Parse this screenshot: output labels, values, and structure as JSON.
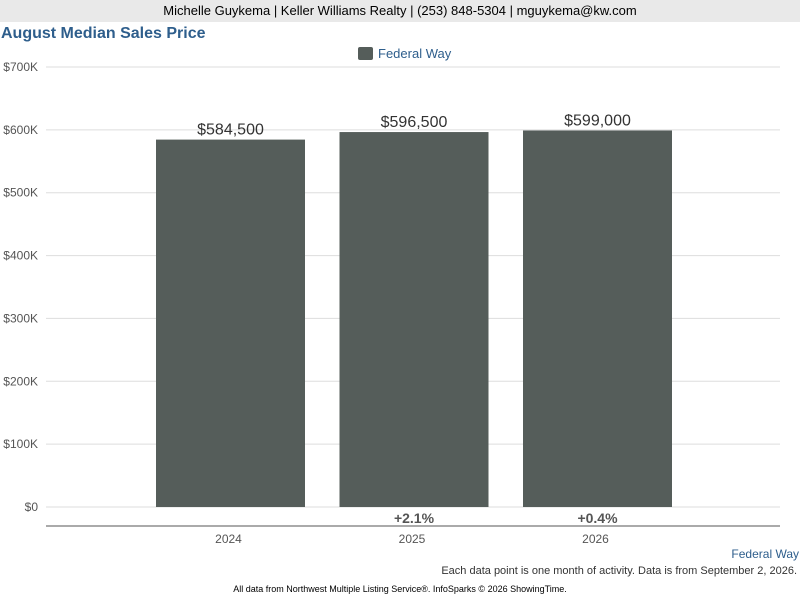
{
  "header": {
    "contact": "Michelle Guykema | Keller Williams Realty | (253) 848-5304 | mguykema@kw.com"
  },
  "colors": {
    "bar": "#555d5a",
    "title": "#2e5e8c",
    "grid": "#dddddd",
    "axis": "#555555",
    "header_bg": "#e9e9e9"
  },
  "chart_data": {
    "type": "bar",
    "title": "August Median Sales Price",
    "categories": [
      "2024",
      "2025",
      "2026"
    ],
    "series": [
      {
        "name": "Federal Way",
        "values": [
          584500,
          596500,
          599000
        ]
      }
    ],
    "data_labels": [
      "$584,500",
      "$596,500",
      "$599,000"
    ],
    "changes": [
      "",
      "+2.1%",
      "+0.4%"
    ],
    "y_ticks": [
      0,
      100000,
      200000,
      300000,
      400000,
      500000,
      600000,
      700000
    ],
    "y_tick_labels": [
      "$0",
      "$100K",
      "$200K",
      "$300K",
      "$400K",
      "$500K",
      "$600K",
      "$700K"
    ],
    "ylim": [
      0,
      700000
    ],
    "grid": true,
    "legend": "top-center"
  },
  "source_link": "Federal Way",
  "note": "Each data point is one month of activity. Data is from September 2, 2026.",
  "footer": "All data from Northwest Multiple Listing Service®. InfoSparks © 2026 ShowingTime."
}
